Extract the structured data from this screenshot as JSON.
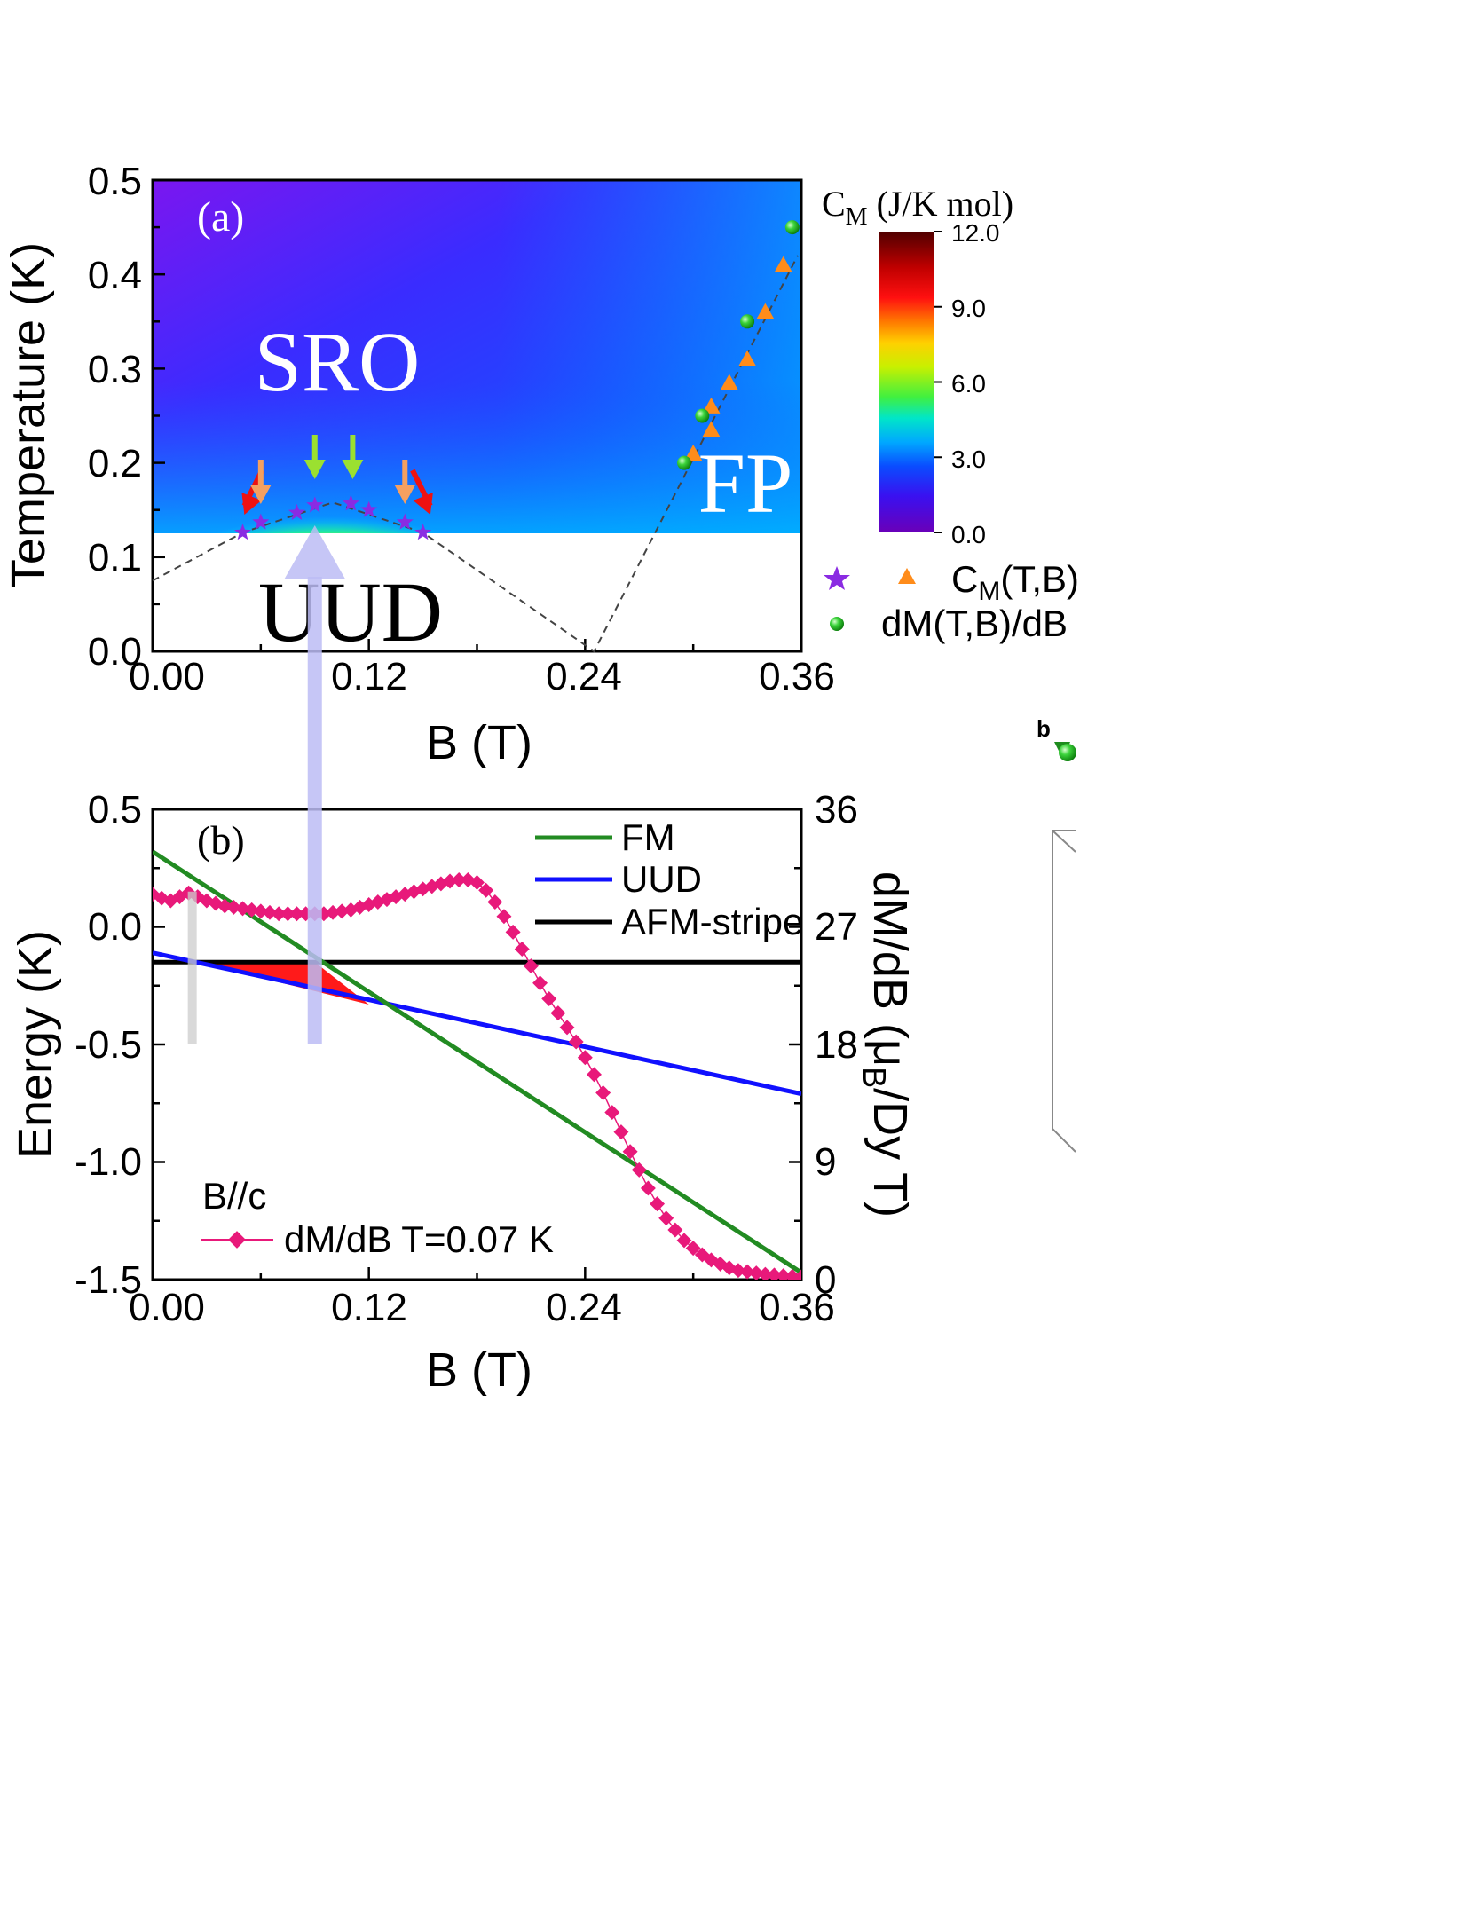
{
  "chart_data": [
    {
      "type": "heatmap",
      "panel_label": "(a)",
      "xlabel": "B (T)",
      "ylabel": "Temperature (K)",
      "xlim": [
        0,
        0.36
      ],
      "ylim": [
        0,
        0.5
      ],
      "x_ticks": [
        "0.00",
        "0.12",
        "0.24",
        "0.36"
      ],
      "y_ticks": [
        "0.0",
        "0.1",
        "0.2",
        "0.3",
        "0.4",
        "0.5"
      ],
      "colorbar": {
        "title": "C",
        "title_sub": "M",
        "title_rest": " (J/K mol)",
        "range": [
          0,
          12
        ],
        "ticks": [
          "12.0",
          "9.0",
          "6.0",
          "3.0",
          "0.0"
        ]
      },
      "region_labels": [
        "SRO",
        "UUD",
        "FP"
      ],
      "cm_star_points": [
        {
          "B": 0.05,
          "T": 0.126
        },
        {
          "B": 0.06,
          "T": 0.137
        },
        {
          "B": 0.08,
          "T": 0.147
        },
        {
          "B": 0.09,
          "T": 0.155
        },
        {
          "B": 0.11,
          "T": 0.157
        },
        {
          "B": 0.12,
          "T": 0.15
        },
        {
          "B": 0.14,
          "T": 0.137
        },
        {
          "B": 0.15,
          "T": 0.126
        }
      ],
      "cm_triangle_points": [
        {
          "B": 0.3,
          "T": 0.21
        },
        {
          "B": 0.31,
          "T": 0.235
        },
        {
          "B": 0.31,
          "T": 0.26
        },
        {
          "B": 0.32,
          "T": 0.285
        },
        {
          "B": 0.33,
          "T": 0.31
        },
        {
          "B": 0.34,
          "T": 0.36
        },
        {
          "B": 0.35,
          "T": 0.41
        }
      ],
      "dmdb_points": [
        {
          "B": 0.295,
          "T": 0.2
        },
        {
          "B": 0.305,
          "T": 0.25
        },
        {
          "B": 0.33,
          "T": 0.35
        },
        {
          "B": 0.355,
          "T": 0.45
        }
      ],
      "guide_line": [
        [
          0,
          0.075
        ],
        [
          0.05,
          0.126
        ],
        [
          0.1,
          0.158
        ],
        [
          0.15,
          0.126
        ],
        [
          0.245,
          0.0
        ],
        [
          0.358,
          0.42
        ]
      ],
      "arrow_B_values": {
        "red": [
          0.045,
          0.16
        ],
        "orange": [
          0.06,
          0.14
        ],
        "green": [
          0.09,
          0.111
        ]
      },
      "legend": [
        {
          "label": "C",
          "sub": "M",
          "rest": "(T,B)",
          "markers": [
            "purple-star",
            "orange-triangle"
          ]
        },
        {
          "label": "dM(T,B)/dB",
          "markers": [
            "green-sphere"
          ]
        }
      ],
      "colors": {
        "star": "#8a2be2",
        "triangle": "#ff8c1a",
        "sphere": "#2ecc2e"
      }
    },
    {
      "type": "line",
      "panel_label": "(b)",
      "xlabel": "B (T)",
      "ylabel": "Energy (K)",
      "ylabel2": "dM/dB (μ",
      "ylabel2_sub": "B",
      "ylabel2_rest": "/Dy T)",
      "xlim": [
        0,
        0.36
      ],
      "ylim": [
        -1.5,
        0.5
      ],
      "ylim2": [
        0,
        36
      ],
      "x_ticks": [
        "0.00",
        "0.12",
        "0.24",
        "0.36"
      ],
      "y_ticks": [
        "0.5",
        "0.0",
        "-0.5",
        "-1.0",
        "-1.5"
      ],
      "y2_ticks": [
        "36",
        "27",
        "18",
        "9",
        "0"
      ],
      "series": [
        {
          "name": "FM",
          "x": [
            0,
            0.36
          ],
          "y": [
            0.32,
            -1.47
          ],
          "color": "#228b22"
        },
        {
          "name": "UUD",
          "x": [
            0,
            0.36
          ],
          "y": [
            -0.11,
            -0.71
          ],
          "color": "#1010ff"
        },
        {
          "name": "AFM-stripe",
          "x": [
            0,
            0.36
          ],
          "y": [
            -0.15,
            -0.15
          ],
          "color": "#000000"
        }
      ],
      "dmdb": {
        "name": "dM/dB T=0.07 K",
        "color": "#e8197a",
        "x": [
          0.0,
          0.005,
          0.01,
          0.015,
          0.02,
          0.025,
          0.03,
          0.035,
          0.04,
          0.045,
          0.05,
          0.055,
          0.06,
          0.065,
          0.07,
          0.075,
          0.08,
          0.085,
          0.09,
          0.095,
          0.1,
          0.105,
          0.11,
          0.115,
          0.12,
          0.125,
          0.13,
          0.135,
          0.14,
          0.145,
          0.15,
          0.155,
          0.16,
          0.165,
          0.17,
          0.175,
          0.18,
          0.185,
          0.19,
          0.195,
          0.2,
          0.205,
          0.21,
          0.215,
          0.22,
          0.225,
          0.23,
          0.235,
          0.24,
          0.245,
          0.25,
          0.255,
          0.26,
          0.265,
          0.27,
          0.275,
          0.28,
          0.285,
          0.29,
          0.295,
          0.3,
          0.305,
          0.31,
          0.315,
          0.32,
          0.325,
          0.33,
          0.335,
          0.34,
          0.345,
          0.35,
          0.355,
          0.36
        ],
        "y": [
          29.5,
          29.2,
          29.0,
          29.3,
          29.6,
          29.3,
          29.0,
          28.8,
          28.6,
          28.5,
          28.4,
          28.3,
          28.2,
          28.1,
          28.0,
          28.0,
          28.0,
          28.0,
          28.0,
          28.0,
          28.1,
          28.2,
          28.3,
          28.5,
          28.7,
          28.9,
          29.1,
          29.3,
          29.5,
          29.7,
          29.9,
          30.1,
          30.3,
          30.5,
          30.6,
          30.6,
          30.4,
          29.8,
          28.9,
          27.8,
          26.6,
          25.3,
          24.0,
          22.7,
          21.5,
          20.4,
          19.3,
          18.2,
          17.0,
          15.7,
          14.3,
          12.8,
          11.3,
          9.8,
          8.4,
          7.0,
          5.8,
          4.7,
          3.8,
          3.0,
          2.4,
          1.9,
          1.5,
          1.2,
          0.9,
          0.7,
          0.6,
          0.5,
          0.4,
          0.35,
          0.3,
          0.25,
          0.2
        ]
      },
      "field_direction": "B//c",
      "shaded_region": {
        "color": "#ff1a1a",
        "vertices": [
          [
            0.025,
            -0.15
          ],
          [
            0.09,
            -0.15
          ],
          [
            0.12,
            -0.33
          ]
        ]
      },
      "markers": [
        {
          "B": 0.022,
          "y_from": -0.5,
          "y_to": 0.15,
          "color": "#cccccc"
        },
        {
          "B": 0.09,
          "y_from": -0.5,
          "y_to": 0.5,
          "color": "#bcbcf5"
        }
      ]
    }
  ],
  "side_fragment": {
    "letter": "b"
  }
}
